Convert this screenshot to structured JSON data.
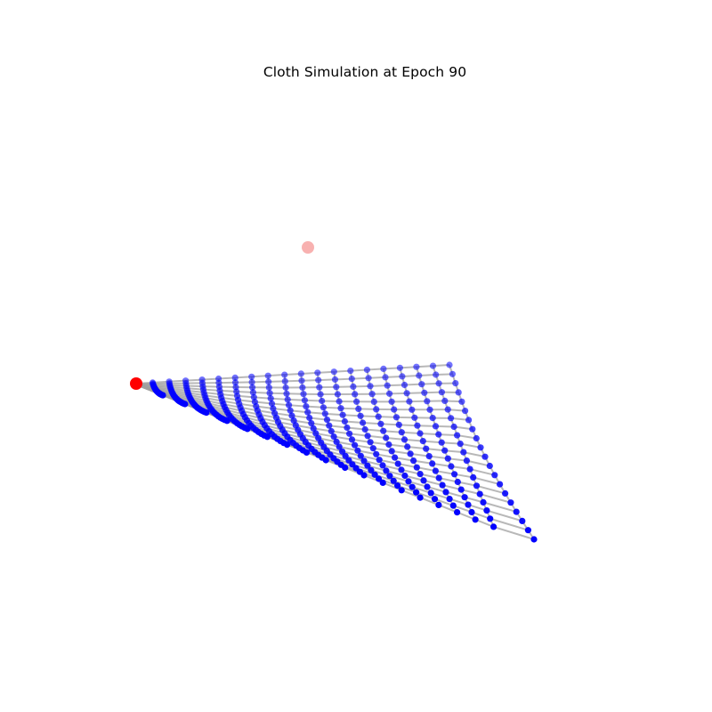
{
  "chart_data": {
    "type": "scatter",
    "title": "Cloth Simulation at Epoch 90",
    "axes_visible": false,
    "grid": false,
    "legend": "none",
    "projection": "3d",
    "cloth_grid": {
      "rows": 20,
      "cols": 20,
      "edge_color": "#a0a0a0",
      "node_color": "#0000ff"
    },
    "pinned_points": [
      {
        "name": "anchor-front",
        "color": "#ff0000",
        "opacity": 1.0
      },
      {
        "name": "anchor-back",
        "color": "#ef5350",
        "opacity": 0.45
      }
    ]
  }
}
